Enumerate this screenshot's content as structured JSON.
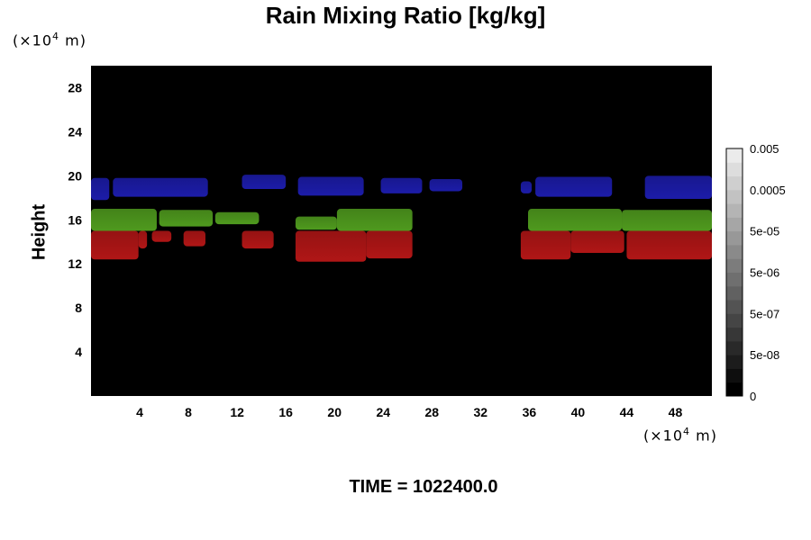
{
  "chart_data": {
    "type": "heatmap",
    "title": "Rain Mixing Ratio [kg/kg]",
    "ylabel": "Height",
    "xlabel": "",
    "x_unit_prefix": "(×10",
    "x_unit_exp": "4",
    "x_unit_suffix": " m)",
    "y_unit_prefix": "(×10",
    "y_unit_exp": "4",
    "y_unit_suffix": " m)",
    "xlim": [
      0,
      51
    ],
    "ylim": [
      0,
      30
    ],
    "x_ticks": [
      "4",
      "8",
      "12",
      "16",
      "20",
      "24",
      "28",
      "32",
      "36",
      "40",
      "44",
      "48"
    ],
    "y_ticks": [
      "4",
      "8",
      "12",
      "16",
      "20",
      "24",
      "28"
    ],
    "colorbar": {
      "levels": 18,
      "labels": [
        "0",
        "5e-08",
        "5e-07",
        "5e-06",
        "5e-05",
        "0.0005",
        "0.005"
      ],
      "range": [
        0,
        0.005
      ]
    },
    "bands": [
      {
        "color": "#1c1ca8",
        "segments": [
          [
            0,
            1.5,
            17.8,
            19.8
          ],
          [
            1.8,
            9.6,
            18.1,
            19.8
          ],
          [
            12.4,
            16.0,
            18.8,
            20.1
          ],
          [
            17.0,
            22.4,
            18.2,
            19.9
          ],
          [
            23.8,
            27.2,
            18.4,
            19.8
          ],
          [
            27.8,
            30.5,
            18.6,
            19.7
          ],
          [
            35.3,
            36.2,
            18.4,
            19.5
          ],
          [
            36.5,
            42.8,
            18.1,
            19.9
          ],
          [
            45.5,
            51,
            17.9,
            20.0
          ]
        ]
      },
      {
        "color": "#4f9a1e",
        "segments": [
          [
            0,
            5.4,
            15.0,
            17.0
          ],
          [
            5.6,
            10.0,
            15.4,
            16.9
          ],
          [
            10.2,
            13.8,
            15.6,
            16.7
          ],
          [
            16.8,
            20.2,
            15.1,
            16.3
          ],
          [
            20.2,
            26.4,
            15.0,
            17.0
          ],
          [
            35.9,
            43.6,
            15.0,
            17.0
          ],
          [
            43.6,
            51,
            15.0,
            16.9
          ]
        ]
      },
      {
        "color": "#b01616",
        "segments": [
          [
            0,
            3.9,
            12.4,
            15.0
          ],
          [
            3.9,
            4.6,
            13.4,
            15.0
          ],
          [
            5.0,
            6.6,
            14.0,
            15.0
          ],
          [
            7.6,
            9.4,
            13.6,
            15.0
          ],
          [
            12.4,
            15.0,
            13.4,
            15.0
          ],
          [
            16.8,
            22.6,
            12.2,
            15.0
          ],
          [
            22.6,
            26.4,
            12.5,
            15.0
          ],
          [
            35.3,
            39.4,
            12.4,
            15.0
          ],
          [
            39.4,
            43.8,
            13.0,
            15.0
          ],
          [
            44.0,
            51,
            12.4,
            15.0
          ]
        ]
      }
    ]
  },
  "footer": {
    "time_label": "TIME = 1022400.0"
  }
}
